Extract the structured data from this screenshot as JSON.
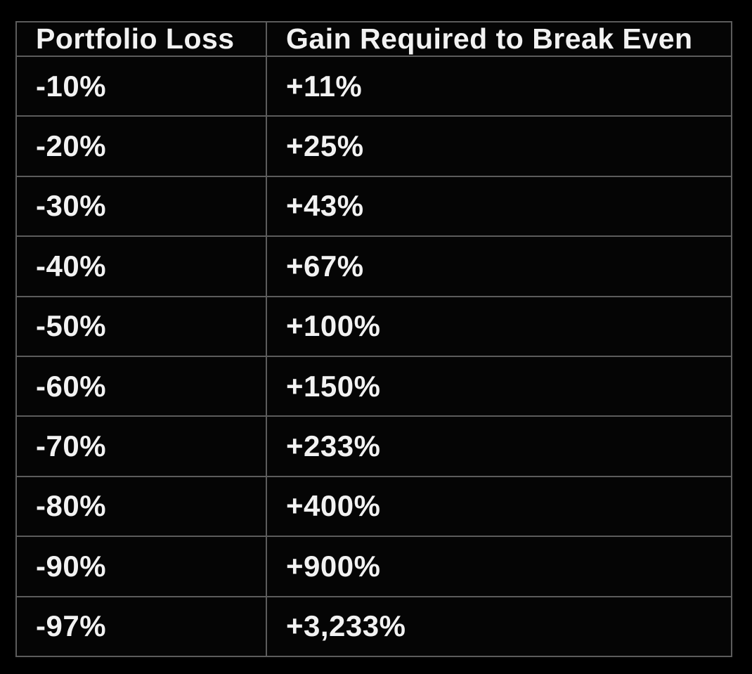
{
  "colors": {
    "background": "#000000",
    "cell_background": "#050505",
    "border": "#5c5c5c",
    "text": "#f2f2f2"
  },
  "table": {
    "headers": {
      "loss": "Portfolio Loss",
      "gain": "Gain Required to Break Even"
    },
    "rows": [
      {
        "loss": "-10%",
        "gain": "+11%"
      },
      {
        "loss": "-20%",
        "gain": "+25%"
      },
      {
        "loss": "-30%",
        "gain": "+43%"
      },
      {
        "loss": "-40%",
        "gain": "+67%"
      },
      {
        "loss": "-50%",
        "gain": "+100%"
      },
      {
        "loss": "-60%",
        "gain": "+150%"
      },
      {
        "loss": "-70%",
        "gain": "+233%"
      },
      {
        "loss": "-80%",
        "gain": "+400%"
      },
      {
        "loss": "-90%",
        "gain": "+900%"
      },
      {
        "loss": "-97%",
        "gain": "+3,233%"
      }
    ]
  },
  "chart_data": {
    "type": "table",
    "title": "",
    "columns": [
      "Portfolio Loss",
      "Gain Required to Break Even"
    ],
    "rows": [
      [
        "-10%",
        "+11%"
      ],
      [
        "-20%",
        "+25%"
      ],
      [
        "-30%",
        "+43%"
      ],
      [
        "-40%",
        "+67%"
      ],
      [
        "-50%",
        "+100%"
      ],
      [
        "-60%",
        "+150%"
      ],
      [
        "-70%",
        "+233%"
      ],
      [
        "-80%",
        "+400%"
      ],
      [
        "-90%",
        "+900%"
      ],
      [
        "-97%",
        "+3,233%"
      ]
    ],
    "portfolio_loss_pct": [
      -10,
      -20,
      -30,
      -40,
      -50,
      -60,
      -70,
      -80,
      -90,
      -97
    ],
    "gain_required_pct": [
      11,
      25,
      43,
      67,
      100,
      150,
      233,
      400,
      900,
      3233
    ]
  }
}
